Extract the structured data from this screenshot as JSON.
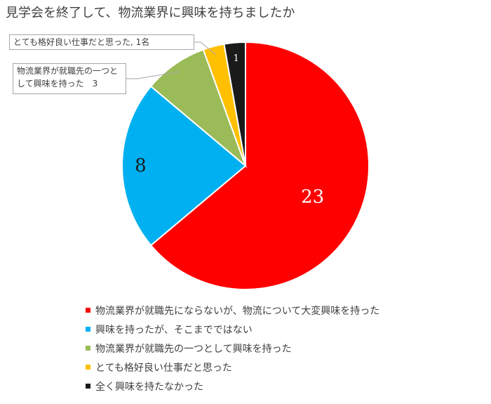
{
  "chart_data": {
    "type": "pie",
    "title": "見学会を終了して、物流業界に興味を持ちましたか",
    "unit": "名",
    "slices": [
      {
        "label": "物流業界が就職先にならないが、物流について大変興味を持った",
        "value": 23,
        "color": "#ff0000",
        "data_label": "23"
      },
      {
        "label": "興味を持ったが、そこまでではない",
        "value": 8,
        "color": "#00b0f0",
        "data_label": "8"
      },
      {
        "label": "物流業界が就職先の一つとして興味を持った",
        "value": 3,
        "color": "#9bbb59",
        "data_label": "物流業界が就職先の一つとして興味を持った　3"
      },
      {
        "label": "とても格好良い仕事だと思った",
        "value": 1,
        "color": "#ffc000",
        "data_label": "とても格好良い仕事だと思った, 1名"
      },
      {
        "label": "全く興味を持たなかった",
        "value": 1,
        "color": "#1a1a1a",
        "data_label": "1"
      }
    ],
    "legend_position": "bottom",
    "start_angle_deg": 0,
    "direction": "clockwise"
  }
}
